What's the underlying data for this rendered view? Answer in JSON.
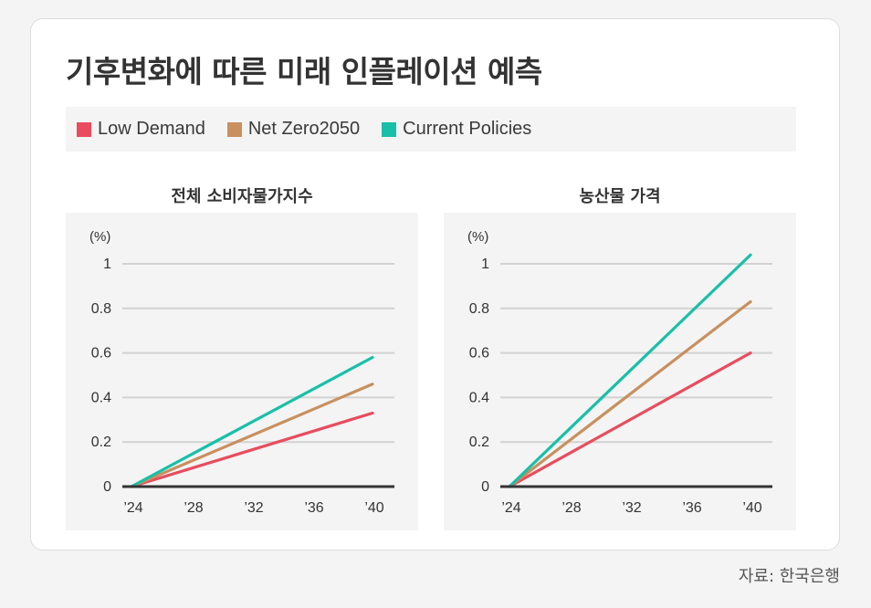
{
  "title": "기후변화에 따른 미래 인플레이션 예측",
  "legend": [
    {
      "label": "Low Demand",
      "color": "#e84c5e"
    },
    {
      "label": "Net Zero2050",
      "color": "#c8905e"
    },
    {
      "label": "Current Policies",
      "color": "#19bfa8"
    }
  ],
  "source": "자료: 한국은행",
  "chart_data": [
    {
      "type": "line",
      "title": "전체 소비자물가지수",
      "ylabel": "(%)",
      "xlabel": "",
      "x": [
        2024,
        2040
      ],
      "xticks": [
        2024,
        2028,
        2032,
        2036,
        2040
      ],
      "xtick_labels": [
        "’24",
        "’28",
        "’32",
        "’36",
        "’40"
      ],
      "yticks": [
        0,
        0.2,
        0.4,
        0.6,
        0.8,
        1
      ],
      "ytick_labels": [
        "0",
        "0.2",
        "0.4",
        "0.6",
        "0.8",
        "1"
      ],
      "ylim": [
        0,
        1
      ],
      "grid": true,
      "series": [
        {
          "name": "Low Demand",
          "color": "#e84c5e",
          "values": [
            0,
            0.33
          ]
        },
        {
          "name": "Net Zero2050",
          "color": "#c8905e",
          "values": [
            0,
            0.46
          ]
        },
        {
          "name": "Current Policies",
          "color": "#19bfa8",
          "values": [
            0,
            0.58
          ]
        }
      ]
    },
    {
      "type": "line",
      "title": "농산물 가격",
      "ylabel": "(%)",
      "xlabel": "",
      "x": [
        2024,
        2040
      ],
      "xticks": [
        2024,
        2028,
        2032,
        2036,
        2040
      ],
      "xtick_labels": [
        "’24",
        "’28",
        "’32",
        "’36",
        "’40"
      ],
      "yticks": [
        0,
        0.2,
        0.4,
        0.6,
        0.8,
        1
      ],
      "ytick_labels": [
        "0",
        "0.2",
        "0.4",
        "0.6",
        "0.8",
        "1"
      ],
      "ylim": [
        0,
        1
      ],
      "grid": true,
      "series": [
        {
          "name": "Low Demand",
          "color": "#e84c5e",
          "values": [
            0,
            0.6
          ]
        },
        {
          "name": "Net Zero2050",
          "color": "#c8905e",
          "values": [
            0,
            0.83
          ]
        },
        {
          "name": "Current Policies",
          "color": "#19bfa8",
          "values": [
            0,
            1.04
          ]
        }
      ]
    }
  ]
}
